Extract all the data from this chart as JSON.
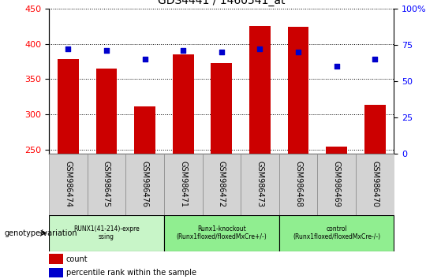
{
  "title": "GDS4441 / 1460541_at",
  "samples": [
    "GSM986474",
    "GSM986475",
    "GSM986476",
    "GSM986471",
    "GSM986472",
    "GSM986473",
    "GSM986468",
    "GSM986469",
    "GSM986470"
  ],
  "counts": [
    378,
    365,
    312,
    385,
    373,
    425,
    424,
    255,
    314
  ],
  "percentile_ranks": [
    72,
    71,
    65,
    71,
    70,
    72,
    70,
    60,
    65
  ],
  "ylim_left": [
    245,
    450
  ],
  "ylim_right": [
    0,
    100
  ],
  "yticks_left": [
    250,
    300,
    350,
    400,
    450
  ],
  "yticks_right": [
    0,
    25,
    50,
    75,
    100
  ],
  "groups": [
    {
      "label": "RUNX1(41-214)-expre\nssing",
      "start": 0,
      "end": 3,
      "color": "#c8f5c8"
    },
    {
      "label": "Runx1-knockout\n(Runx1floxed/floxedMxCre+/-)",
      "start": 3,
      "end": 6,
      "color": "#90ee90"
    },
    {
      "label": "control\n(Runx1floxed/floxedMxCre-/-)",
      "start": 6,
      "end": 9,
      "color": "#90ee90"
    }
  ],
  "bar_color": "#cc0000",
  "dot_color": "#0000cc",
  "bar_width": 0.55,
  "grid_color": "#000000",
  "grid_linestyle": ":",
  "tick_area_color": "#d3d3d3",
  "legend_items": [
    "count",
    "percentile rank within the sample"
  ],
  "legend_colors": [
    "#cc0000",
    "#0000cc"
  ],
  "genotype_label": "genotype/variation"
}
